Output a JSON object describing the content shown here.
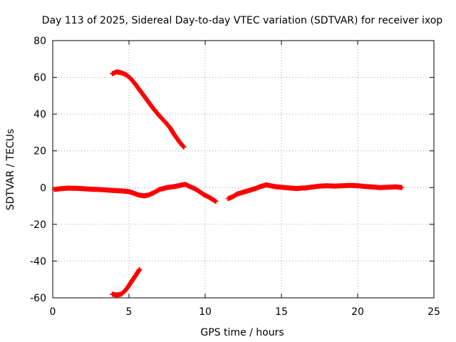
{
  "chart_data": {
    "type": "scatter",
    "title": "Day 113 of 2025, Sidereal Day-to-day VTEC variation (SDTVAR) for receiver ixop",
    "xlabel": "GPS time / hours",
    "ylabel": "SDTVAR / TECUs",
    "xlim": [
      0,
      25
    ],
    "ylim": [
      -60,
      80
    ],
    "xticks": [
      0,
      5,
      10,
      15,
      20,
      25
    ],
    "yticks": [
      -60,
      -40,
      -20,
      0,
      20,
      40,
      60,
      80
    ],
    "xtick_labels": [
      "0",
      "5",
      "10",
      "15",
      "20",
      "25"
    ],
    "ytick_labels": [
      "-60",
      "-40",
      "-20",
      "0",
      "20",
      "40",
      "60",
      "80"
    ],
    "grid": true,
    "marker": "plus",
    "series_color": "#ff0000",
    "series": [
      {
        "name": "main",
        "x": [
          0.1,
          0.5,
          1.0,
          1.5,
          2.0,
          2.5,
          3.0,
          3.5,
          4.0,
          4.5,
          5.0,
          5.3,
          5.6,
          6.0,
          6.3,
          6.7,
          7.0,
          7.5,
          8.0,
          8.4,
          8.7,
          9.0,
          9.3,
          9.6,
          9.9,
          10.2,
          10.5,
          10.7
        ],
        "y": [
          -1.0,
          -0.6,
          -0.3,
          -0.4,
          -0.6,
          -0.9,
          -1.0,
          -1.3,
          -1.6,
          -1.8,
          -2.2,
          -3.0,
          -4.0,
          -4.5,
          -4.0,
          -2.5,
          -1.0,
          0.0,
          0.6,
          1.3,
          1.8,
          0.5,
          -0.5,
          -2.0,
          -3.8,
          -5.0,
          -6.5,
          -7.5
        ]
      },
      {
        "name": "main-after-gap",
        "x": [
          11.5,
          11.8,
          12.1,
          12.5,
          12.9,
          13.3,
          13.6,
          14.0,
          14.3,
          14.6,
          15.0,
          15.5,
          16.0,
          16.3,
          16.6,
          17.0,
          17.5,
          18.0,
          18.5,
          19.0,
          19.5,
          20.0,
          20.5,
          21.0,
          21.5,
          22.0,
          22.5,
          22.9
        ],
        "y": [
          -6.0,
          -5.0,
          -3.5,
          -2.5,
          -1.5,
          -0.5,
          0.5,
          1.5,
          1.0,
          0.5,
          0.2,
          -0.2,
          -0.5,
          -0.3,
          -0.2,
          0.3,
          0.8,
          1.0,
          0.8,
          1.0,
          1.2,
          1.0,
          0.6,
          0.3,
          0.0,
          0.2,
          0.4,
          0.0
        ]
      },
      {
        "name": "upper-branch",
        "x": [
          3.9,
          4.2,
          4.5,
          4.8,
          5.1,
          5.4,
          5.8,
          6.2,
          6.6,
          7.0,
          7.4,
          7.7,
          8.0,
          8.3,
          8.6
        ],
        "y": [
          62.0,
          63.0,
          62.5,
          61.5,
          59.5,
          56.5,
          52.0,
          47.5,
          43.0,
          39.0,
          35.5,
          32.5,
          28.5,
          25.0,
          22.0
        ]
      },
      {
        "name": "lower-branch",
        "x": [
          3.9,
          4.2,
          4.5,
          4.7,
          4.9,
          5.1,
          5.3,
          5.5,
          5.7
        ],
        "y": [
          -58.0,
          -58.5,
          -58.0,
          -56.5,
          -54.5,
          -52.0,
          -49.5,
          -47.0,
          -44.5
        ]
      }
    ]
  }
}
